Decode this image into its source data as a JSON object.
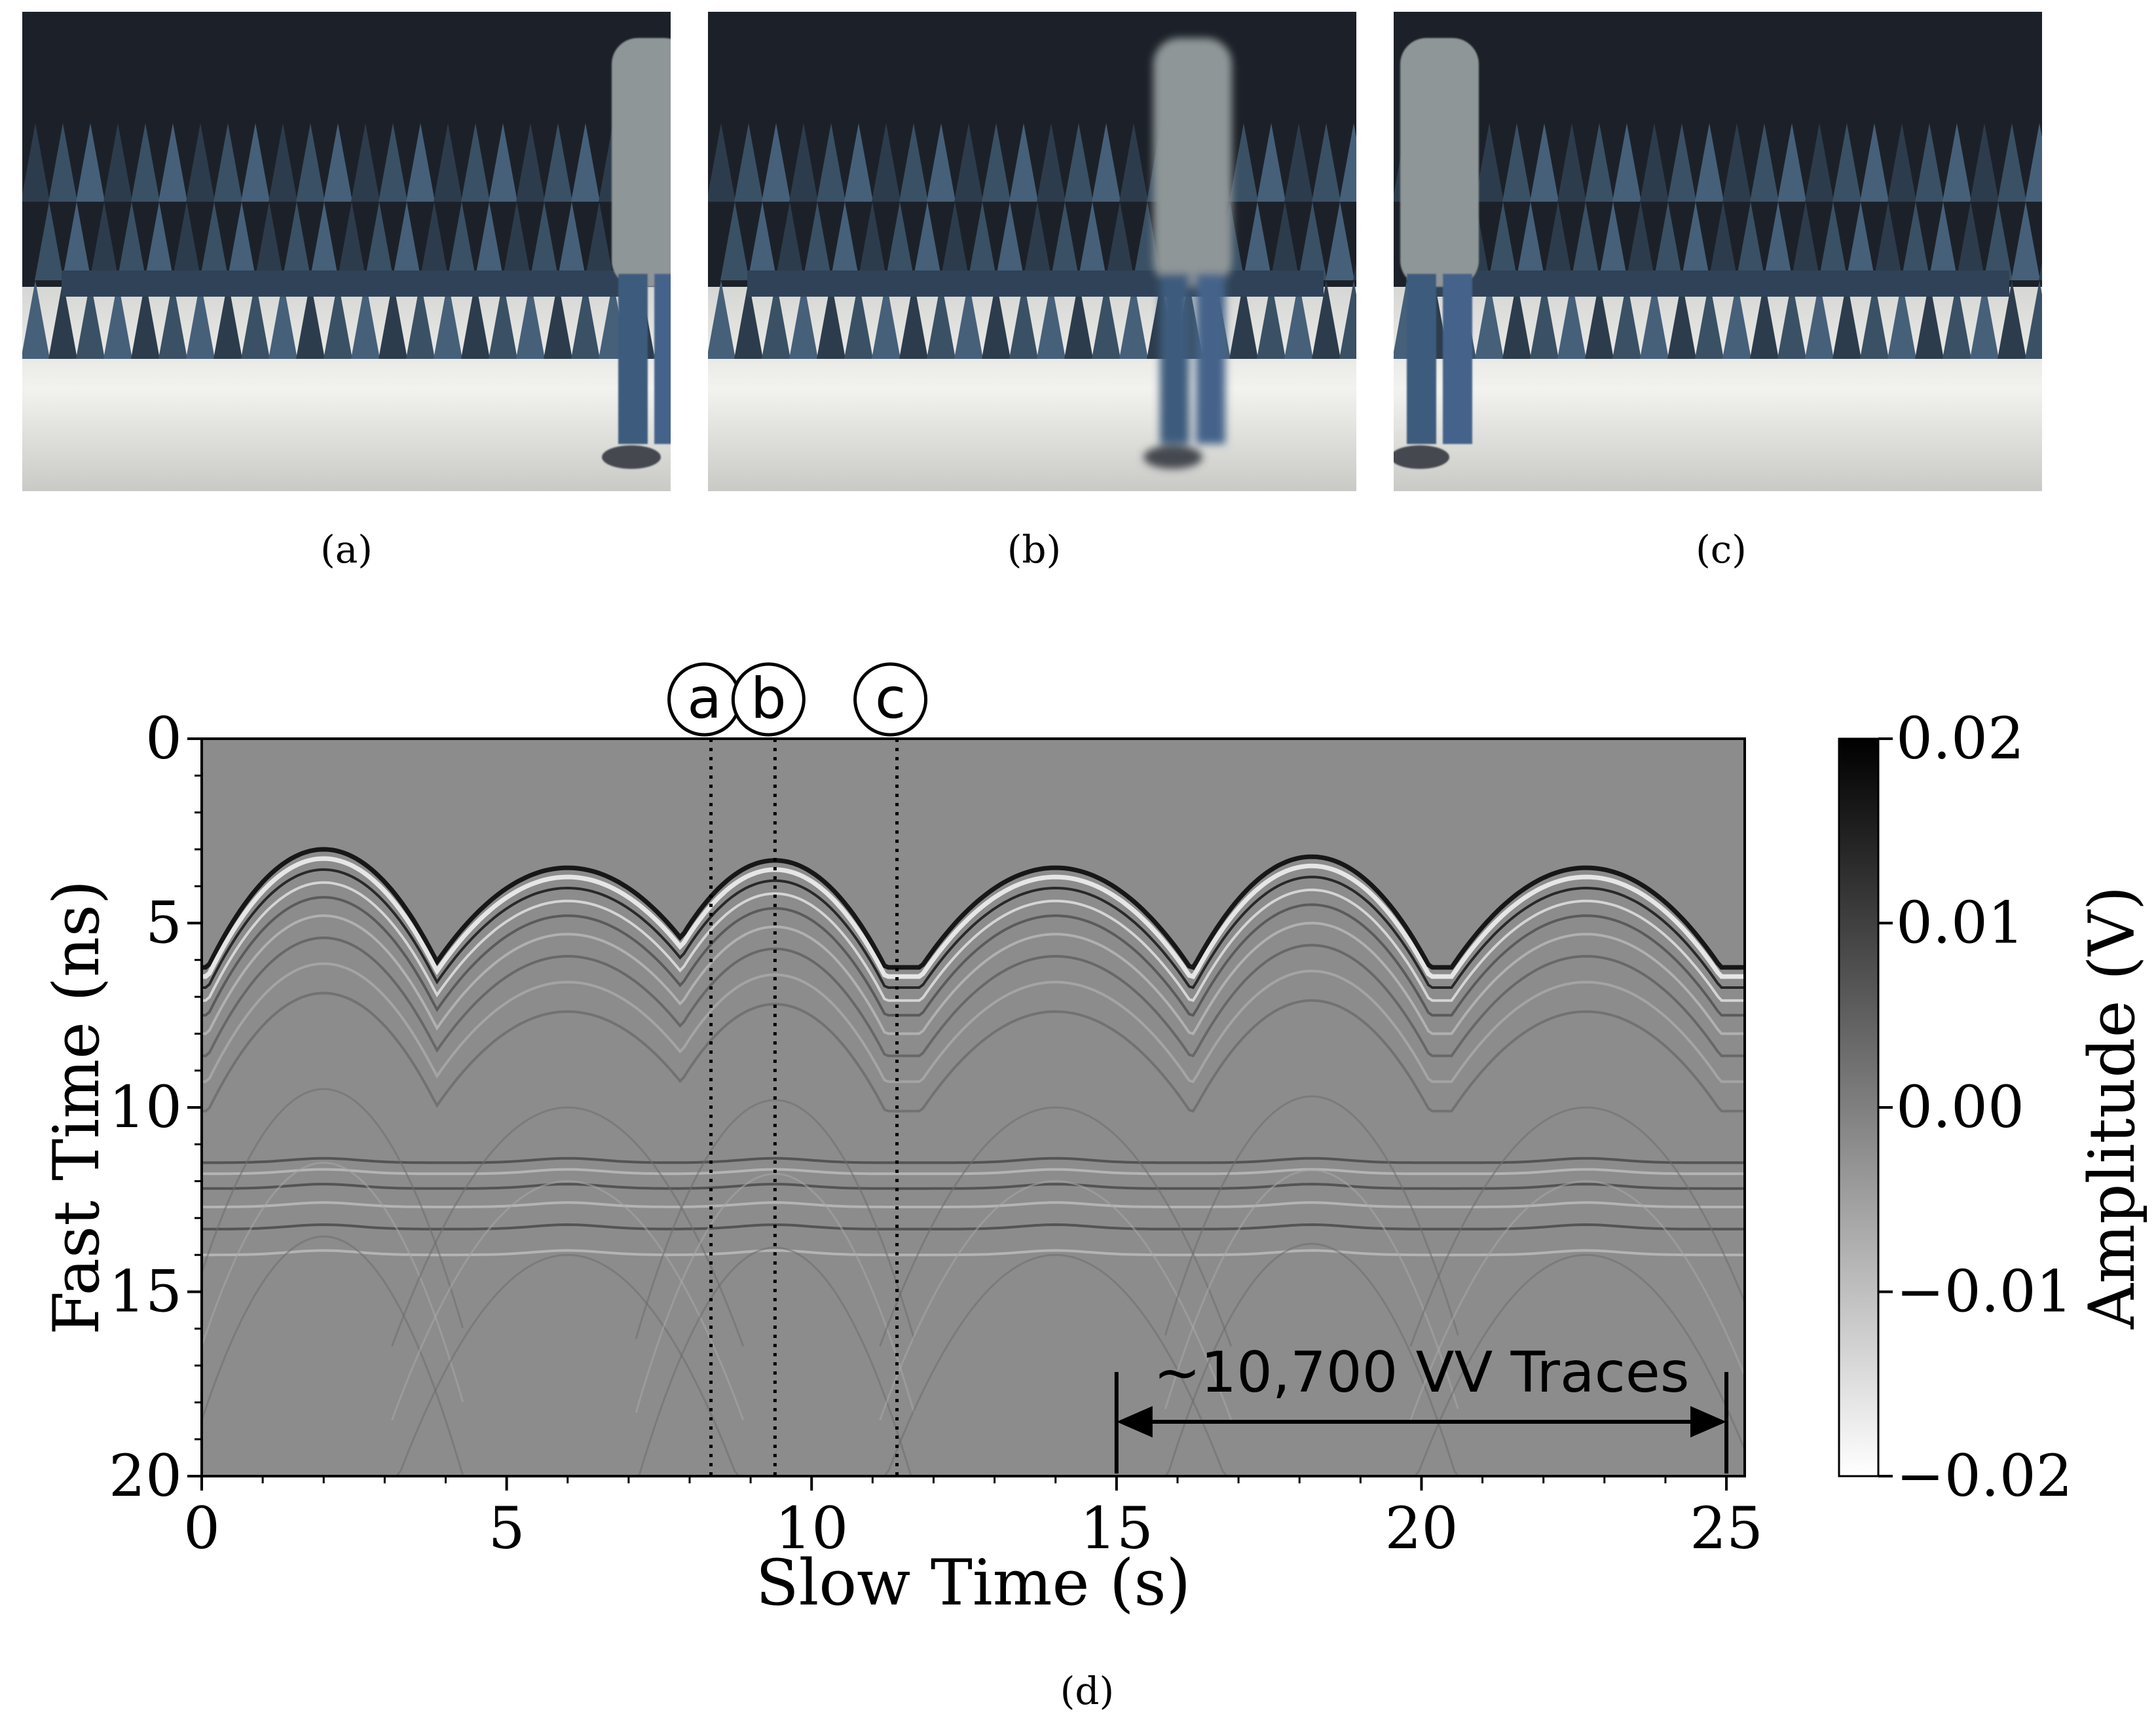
{
  "panels": [
    {
      "id": "a",
      "caption": "(a)"
    },
    {
      "id": "b",
      "caption": "(b)"
    },
    {
      "id": "c",
      "caption": "(c)"
    },
    {
      "id": "d",
      "caption": "(d)"
    }
  ],
  "markers": {
    "a": "a",
    "b": "b",
    "c": "c"
  },
  "chart_data": {
    "type": "heatmap",
    "xlabel": "Slow Time (s)",
    "ylabel": "Fast Time (ns)",
    "colorbar_label": "Amplitude (V)",
    "xlim": [
      0,
      25.3
    ],
    "ylim": [
      20,
      0
    ],
    "xticks": [
      0,
      5,
      10,
      15,
      20,
      25
    ],
    "yticks": [
      0,
      5,
      10,
      15,
      20
    ],
    "colorbar_ticks": [
      "0.02",
      "0.01",
      "0.00",
      "−0.01",
      "−0.02"
    ],
    "colorbar_range": [
      -0.02,
      0.02
    ],
    "colormap": "gray_r",
    "markers": [
      {
        "label": "a",
        "x": 8.35
      },
      {
        "label": "b",
        "x": 9.4
      },
      {
        "label": "c",
        "x": 11.4
      }
    ],
    "annotation": {
      "text": "~10,700 VV Traces",
      "x_start": 15,
      "x_end": 25
    }
  }
}
